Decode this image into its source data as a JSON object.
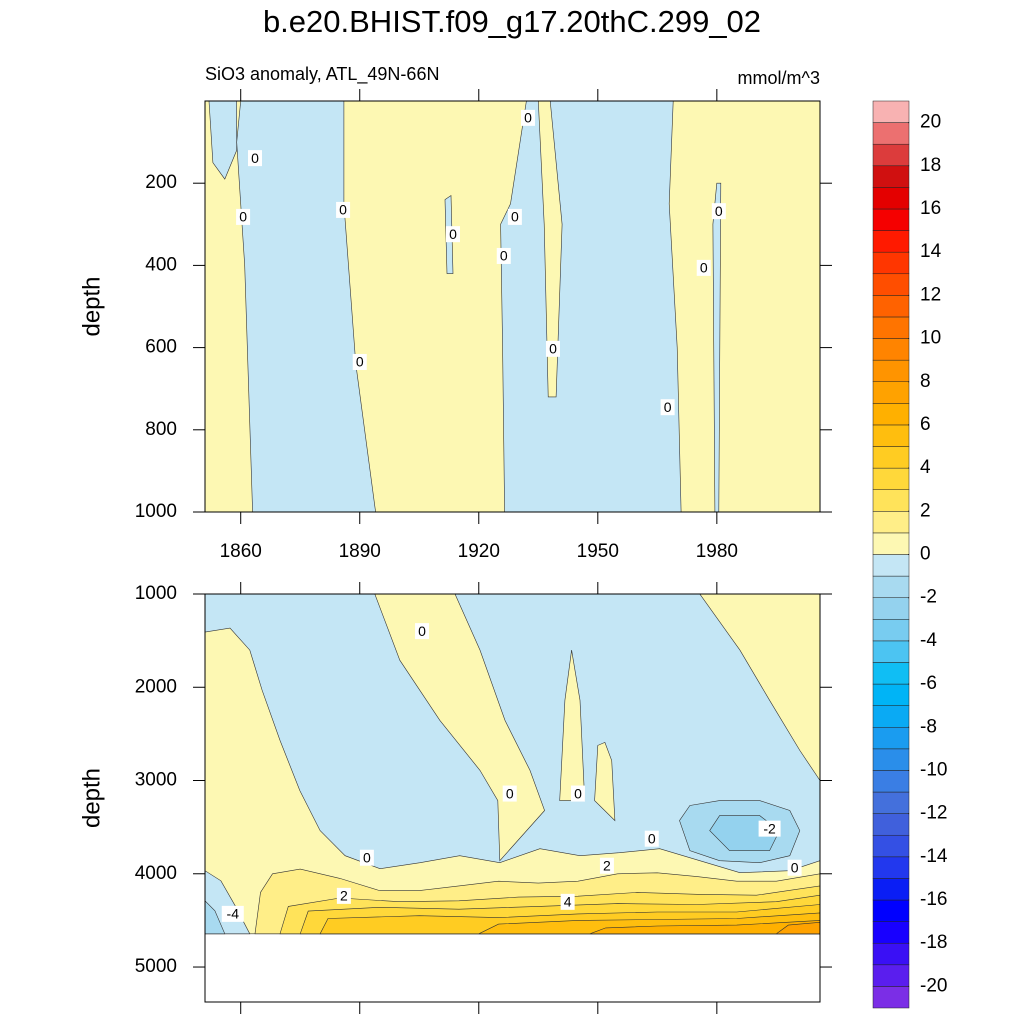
{
  "chart_data": [
    {
      "type": "contour",
      "title": "b.e20.BHIST.f09_g17.20thC.299_02",
      "subtitle": "SiO3 anomaly, ATL_49N-66N",
      "units": "mmol/m^3",
      "ylabel": "depth",
      "xlim": [
        1851,
        2006
      ],
      "xticks": [
        1860,
        1890,
        1920,
        1950,
        1980
      ],
      "show_xtick_labels": true,
      "ylim": [
        1000,
        0
      ],
      "yticks": [
        200,
        400,
        600,
        800,
        1000
      ],
      "regions": [
        {
          "level": 0,
          "points": [
            [
              1851,
              0
            ],
            [
              2006,
              0
            ],
            [
              2006,
              1000
            ],
            [
              1851,
              1000
            ]
          ]
        },
        {
          "level": -1,
          "points": [
            [
              1852,
              0
            ],
            [
              1859,
              0
            ],
            [
              1859,
              120
            ],
            [
              1856,
              190
            ],
            [
              1853,
              150
            ]
          ]
        },
        {
          "level": -1,
          "points": [
            [
              1860,
              0
            ],
            [
              1886,
              0
            ],
            [
              1886,
              250
            ],
            [
              1889,
              640
            ],
            [
              1894,
              1000
            ],
            [
              1863,
              1000
            ],
            [
              1861,
              400
            ],
            [
              1859,
              100
            ]
          ]
        },
        {
          "level": -1,
          "points": [
            [
              1911.5,
              240
            ],
            [
              1913,
              230
            ],
            [
              1913.5,
              420
            ],
            [
              1912,
              420
            ]
          ]
        },
        {
          "level": -1,
          "points": [
            [
              1925.5,
              300
            ],
            [
              1928,
              250
            ],
            [
              1932,
              0
            ],
            [
              1969,
              0
            ],
            [
              1968,
              250
            ],
            [
              1970,
              600
            ],
            [
              1971,
              1000
            ],
            [
              1926.5,
              1000
            ],
            [
              1926,
              600
            ]
          ]
        },
        {
          "level": 0,
          "points": [
            [
              1935,
              0
            ],
            [
              1938,
              0
            ],
            [
              1941,
              300
            ],
            [
              1939.5,
              720
            ],
            [
              1937.5,
              720
            ],
            [
              1936.5,
              300
            ]
          ]
        },
        {
          "level": -1,
          "points": [
            [
              1979,
              300
            ],
            [
              1980,
              200
            ],
            [
              1981,
              200
            ],
            [
              1980.5,
              1000
            ],
            [
              1979.5,
              1000
            ]
          ]
        }
      ],
      "contour_labels": [
        {
          "text": "0",
          "x": 1863.6,
          "y": 139
        },
        {
          "text": "0",
          "x": 1860.6,
          "y": 282
        },
        {
          "text": "0",
          "x": 1885.8,
          "y": 265
        },
        {
          "text": "0",
          "x": 1913.5,
          "y": 324
        },
        {
          "text": "0",
          "x": 1926.3,
          "y": 377
        },
        {
          "text": "0",
          "x": 1929.1,
          "y": 282
        },
        {
          "text": "0",
          "x": 1932.4,
          "y": 41
        },
        {
          "text": "0",
          "x": 1938.7,
          "y": 603
        },
        {
          "text": "0",
          "x": 1890.0,
          "y": 635
        },
        {
          "text": "0",
          "x": 1967.6,
          "y": 745
        },
        {
          "text": "0",
          "x": 1976.7,
          "y": 406
        },
        {
          "text": "0",
          "x": 1980.5,
          "y": 268
        }
      ],
      "colorbar": {
        "levels": [
          -21,
          -20,
          -19,
          -18,
          -17,
          -16,
          -15,
          -14,
          -13,
          -12,
          -11,
          -10,
          -9,
          -8,
          -7,
          -6,
          -5,
          -4,
          -3,
          -2,
          -1,
          0,
          1,
          2,
          3,
          4,
          5,
          6,
          7,
          8,
          9,
          10,
          11,
          12,
          13,
          14,
          15,
          16,
          17,
          18,
          19,
          20,
          21
        ],
        "colors": [
          "#7b2ee6",
          "#5a1eee",
          "#3a10f5",
          "#1800ff",
          "#0000ff",
          "#0a1ef5",
          "#2238ee",
          "#3450e4",
          "#4060dc",
          "#4470dc",
          "#3a7ee4",
          "#2a8eea",
          "#1a9cf0",
          "#0aaaf4",
          "#00b4f6",
          "#10bef4",
          "#4cc4f2",
          "#78ccf0",
          "#94d2ee",
          "#a8daf0",
          "#c4e6f5",
          "#fdf8b3",
          "#ffee88",
          "#ffe35a",
          "#ffd83a",
          "#ffcc22",
          "#ffbe0e",
          "#ffb000",
          "#ffa200",
          "#ff9400",
          "#ff8400",
          "#ff7400",
          "#ff6200",
          "#ff4e00",
          "#ff3600",
          "#ff1a00",
          "#f50000",
          "#e40000",
          "#d01010",
          "#dc3c3c",
          "#ec7070",
          "#f8b2b2"
        ],
        "ticks": [
          -20,
          -18,
          -16,
          -14,
          -12,
          -10,
          -8,
          -6,
          -4,
          -2,
          0,
          2,
          4,
          6,
          8,
          10,
          12,
          14,
          16,
          18,
          20
        ]
      }
    },
    {
      "type": "contour",
      "ylabel": "depth",
      "xlim": [
        1851,
        2006
      ],
      "xticks": [
        1860,
        1890,
        1920,
        1950,
        1980
      ],
      "show_xtick_labels": false,
      "ylim": [
        5375,
        1000
      ],
      "yticks": [
        1000,
        2000,
        3000,
        4000,
        5000
      ],
      "regions": [
        {
          "level": 0,
          "points": [
            [
              1851,
              1000
            ],
            [
              2006,
              1000
            ],
            [
              2006,
              4644
            ],
            [
              1851,
              4644
            ]
          ]
        },
        {
          "level": -1,
          "points": [
            [
              1851,
              1000
            ],
            [
              1975.7,
              1000
            ],
            [
              1985.8,
              1495
            ],
            [
              1998.4,
              2355
            ],
            [
              2004.7,
              2892
            ],
            [
              2006,
              3000
            ],
            [
              2006,
              3860
            ],
            [
              1998.4,
              3967
            ],
            [
              1985.8,
              3989
            ],
            [
              1975.7,
              3860
            ],
            [
              1965.6,
              3731
            ],
            [
              1955.5,
              3774
            ],
            [
              1945.5,
              3806
            ],
            [
              1935.4,
              3731
            ],
            [
              1925.3,
              3881
            ],
            [
              1915.2,
              3806
            ],
            [
              1905.2,
              3881
            ],
            [
              1895.1,
              3946
            ],
            [
              1886.3,
              3806
            ],
            [
              1880,
              3537
            ],
            [
              1874.9,
              3107
            ],
            [
              1869.9,
              2570
            ],
            [
              1865.4,
              2032
            ],
            [
              1862.3,
              1602
            ],
            [
              1857.3,
              1366
            ],
            [
              1851,
              1409
            ]
          ]
        },
        {
          "level": 0,
          "points": [
            [
              1893.8,
              1000
            ],
            [
              1900.1,
              1710
            ],
            [
              1910.2,
              2355
            ],
            [
              1920.3,
              2892
            ],
            [
              1924.8,
              3215
            ],
            [
              1925.3,
              3860
            ],
            [
              1936.6,
              3322
            ],
            [
              1932.9,
              2892
            ],
            [
              1926.6,
              2355
            ],
            [
              1920.3,
              1602
            ],
            [
              1914,
              1000
            ]
          ]
        },
        {
          "level": 0,
          "points": [
            [
              1940.4,
              3215
            ],
            [
              1941.7,
              2140
            ],
            [
              1943.4,
              1602
            ],
            [
              1945.5,
              2140
            ],
            [
              1946.7,
              3215
            ]
          ]
        },
        {
          "level": 0,
          "points": [
            [
              1949.2,
              3215
            ],
            [
              1950,
              2623
            ],
            [
              1951.8,
              2591
            ],
            [
              1953.5,
              2785
            ],
            [
              1954.3,
              3430
            ]
          ]
        },
        {
          "level": 0,
          "points": [
            [
              1975.7,
              1000
            ],
            [
              2006,
              1000
            ],
            [
              2006,
              3000
            ],
            [
              2000.9,
              2677
            ],
            [
              1993.3,
              2140
            ],
            [
              1985.8,
              1602
            ]
          ]
        },
        {
          "level": 1,
          "points": [
            [
              1863.6,
              4644
            ],
            [
              1865,
              4200
            ],
            [
              1868,
              4000
            ],
            [
              1875,
              3950
            ],
            [
              1885,
              4050
            ],
            [
              1895,
              4180
            ],
            [
              1905,
              4180
            ],
            [
              1915,
              4130
            ],
            [
              1925,
              4080
            ],
            [
              1935,
              4100
            ],
            [
              1945,
              4080
            ],
            [
              1955,
              4000
            ],
            [
              1965,
              3990
            ],
            [
              1975,
              4030
            ],
            [
              1985,
              4080
            ],
            [
              1995,
              4080
            ],
            [
              2006,
              4000
            ],
            [
              2006,
              4644
            ]
          ]
        },
        {
          "level": 2,
          "points": [
            [
              1869.9,
              4644
            ],
            [
              1872,
              4350
            ],
            [
              1885,
              4260
            ],
            [
              1900,
              4300
            ],
            [
              1915,
              4290
            ],
            [
              1930,
              4250
            ],
            [
              1945,
              4240
            ],
            [
              1960,
              4200
            ],
            [
              1975,
              4220
            ],
            [
              1990,
              4230
            ],
            [
              2006,
              4130
            ],
            [
              2006,
              4644
            ]
          ]
        },
        {
          "level": 3,
          "points": [
            [
              1875,
              4644
            ],
            [
              1877,
              4400
            ],
            [
              1895,
              4360
            ],
            [
              1915,
              4380
            ],
            [
              1935,
              4350
            ],
            [
              1955,
              4320
            ],
            [
              1975,
              4330
            ],
            [
              1995,
              4300
            ],
            [
              2006,
              4230
            ],
            [
              2006,
              4644
            ]
          ]
        },
        {
          "level": 4,
          "points": [
            [
              1880,
              4644
            ],
            [
              1882,
              4480
            ],
            [
              1905,
              4450
            ],
            [
              1925,
              4470
            ],
            [
              1945,
              4430
            ],
            [
              1965,
              4410
            ],
            [
              1985,
              4410
            ],
            [
              2006,
              4330
            ],
            [
              2006,
              4644
            ]
          ]
        },
        {
          "level": 5,
          "points": [
            [
              1920,
              4644
            ],
            [
              1925,
              4540
            ],
            [
              1945,
              4500
            ],
            [
              1965,
              4490
            ],
            [
              1985,
              4480
            ],
            [
              2006,
              4420
            ],
            [
              2006,
              4644
            ]
          ]
        },
        {
          "level": 6,
          "points": [
            [
              1948,
              4644
            ],
            [
              1952,
              4580
            ],
            [
              1965,
              4560
            ],
            [
              1985,
              4550
            ],
            [
              2006,
              4500
            ],
            [
              2006,
              4644
            ]
          ]
        },
        {
          "level": 7,
          "points": [
            [
              1995,
              4644
            ],
            [
              1998,
              4550
            ],
            [
              2006,
              4520
            ],
            [
              2006,
              4644
            ]
          ]
        },
        {
          "level": -1,
          "points": [
            [
              1851,
              3967
            ],
            [
              1855,
              4075
            ],
            [
              1858.6,
              4343
            ],
            [
              1862.3,
              4644
            ],
            [
              1851,
              4644
            ]
          ]
        },
        {
          "level": -2,
          "points": [
            [
              1851,
              4290
            ],
            [
              1853.5,
              4397
            ],
            [
              1856,
              4644
            ],
            [
              1851,
              4644
            ]
          ]
        },
        {
          "level": -2,
          "points": [
            [
              1970.6,
              3430
            ],
            [
              1973.2,
              3268
            ],
            [
              1980.7,
              3215
            ],
            [
              1990.8,
              3215
            ],
            [
              1998.4,
              3322
            ],
            [
              2000.9,
              3537
            ],
            [
              1998.4,
              3806
            ],
            [
              1990.8,
              3881
            ],
            [
              1980.7,
              3860
            ],
            [
              1973.2,
              3752
            ]
          ]
        },
        {
          "level": -3,
          "points": [
            [
              1978.2,
              3537
            ],
            [
              1980.7,
              3376
            ],
            [
              1990.8,
              3376
            ],
            [
              1995.8,
              3537
            ],
            [
              1993.3,
              3752
            ],
            [
              1983.2,
              3752
            ]
          ]
        }
      ],
      "contour_labels": [
        {
          "text": "0",
          "x": 1905.7,
          "y": 1398
        },
        {
          "text": "0",
          "x": 1927.8,
          "y": 3140
        },
        {
          "text": "0",
          "x": 1945.0,
          "y": 3140
        },
        {
          "text": "0",
          "x": 1963.6,
          "y": 3624
        },
        {
          "text": "0",
          "x": 1891.8,
          "y": 3828
        },
        {
          "text": "0",
          "x": 1999.6,
          "y": 3935
        },
        {
          "text": "-2",
          "x": 1993.3,
          "y": 3516
        },
        {
          "text": "2",
          "x": 1952.3,
          "y": 3914
        },
        {
          "text": "2",
          "x": 1886.0,
          "y": 4237
        },
        {
          "text": "4",
          "x": 1942.4,
          "y": 4301
        },
        {
          "text": "-4",
          "x": 1858.0,
          "y": 4430
        }
      ]
    }
  ]
}
